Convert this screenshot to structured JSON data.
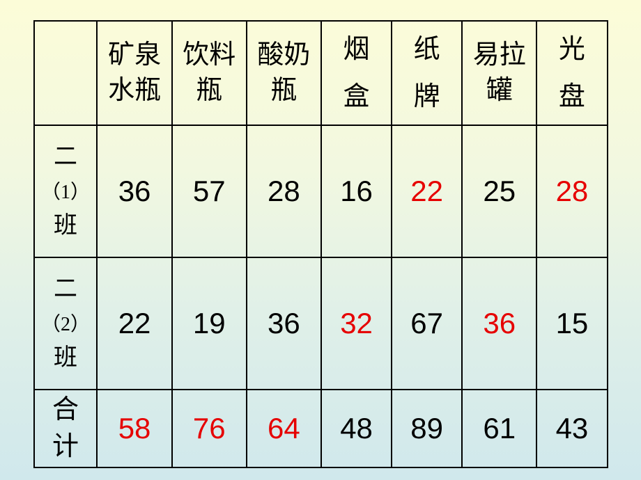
{
  "columns": {
    "c0": "",
    "c1_line1": "矿泉",
    "c1_line2": "水瓶",
    "c2_line1": "饮料",
    "c2_line2": "瓶",
    "c3_line1": "酸奶",
    "c3_line2": "瓶",
    "c4_line1": "烟",
    "c4_line2": "盒",
    "c5_line1": "纸",
    "c5_line2": "牌",
    "c6_line1": "易拉",
    "c6_line2": "罐",
    "c7_line1": "光",
    "c7_line2": "盘"
  },
  "rowlabels": {
    "r1_a": "二",
    "r1_b": "（1）",
    "r1_c": "班",
    "r2_a": "二",
    "r2_b": "（2）",
    "r2_c": "班",
    "r3_a": "合",
    "r3_b": "计"
  },
  "cells": {
    "r1": {
      "c1": "36",
      "c2": "57",
      "c3": "28",
      "c4": "16",
      "c5": "22",
      "c6": "25",
      "c7": "28"
    },
    "r2": {
      "c1": "22",
      "c2": "19",
      "c3": "36",
      "c4": "32",
      "c5": "67",
      "c6": "36",
      "c7": "15"
    },
    "r3": {
      "c1": "58",
      "c2": "76",
      "c3": "64",
      "c4": "48",
      "c5": "89",
      "c6": "61",
      "c7": "43"
    }
  },
  "highlight": {
    "r1": {
      "c1": false,
      "c2": false,
      "c3": false,
      "c4": false,
      "c5": true,
      "c6": false,
      "c7": true
    },
    "r2": {
      "c1": false,
      "c2": false,
      "c3": false,
      "c4": true,
      "c5": false,
      "c6": true,
      "c7": false
    },
    "r3": {
      "c1": true,
      "c2": true,
      "c3": true,
      "c4": false,
      "c5": false,
      "c6": false,
      "c7": false
    }
  },
  "style": {
    "border_color": "#000000",
    "text_color": "#000000",
    "highlight_color": "#e60000",
    "header_fontsize_pt": 38,
    "number_fontsize_pt": 42,
    "rowlabel_fontsize_pt": 34
  }
}
